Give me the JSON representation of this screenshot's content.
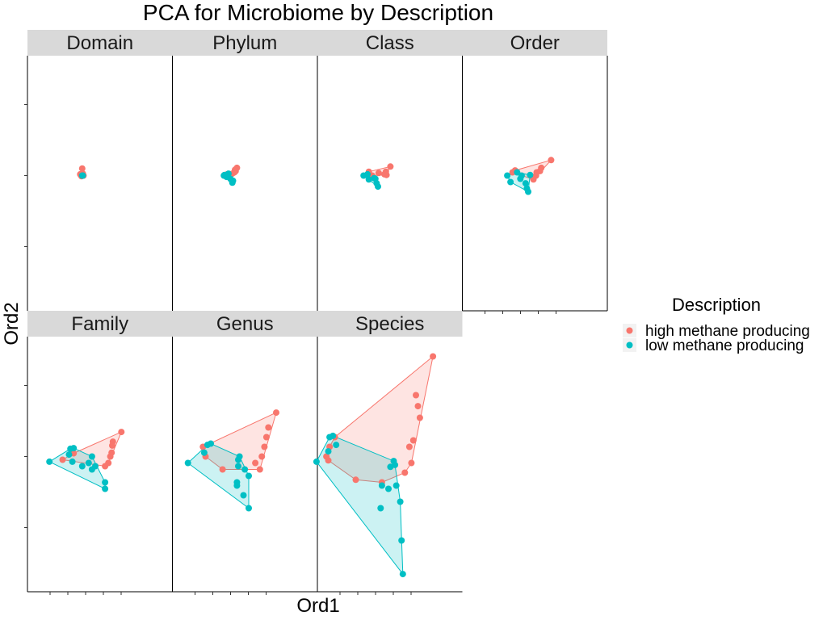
{
  "chart_data": {
    "type": "scatter",
    "title": "PCA for Microbiome by Description",
    "xlabel": "Ord1",
    "ylabel": "Ord2",
    "xlim": [
      -1,
      1
    ],
    "ylim": [
      -1,
      1
    ],
    "grid": false,
    "hulls": true,
    "legend_position": "right",
    "legend": {
      "title": "Description",
      "entries": [
        {
          "name": "high methane producing",
          "color": "#F8766D"
        },
        {
          "name": "low methane producing",
          "color": "#00BFC4"
        }
      ]
    },
    "facets": [
      {
        "label": "Domain",
        "series": [
          {
            "name": "high methane producing",
            "color": "#F8766D",
            "points": [
              [
                -0.08,
                0.02
              ],
              [
                -0.05,
                0.11
              ],
              [
                -0.03,
                0.0
              ],
              [
                -0.06,
                -0.01
              ],
              [
                -0.04,
                0.03
              ]
            ]
          },
          {
            "name": "low methane producing",
            "color": "#00BFC4",
            "points": [
              [
                -0.05,
                0.0
              ],
              [
                -0.04,
                0.0
              ]
            ]
          }
        ]
      },
      {
        "label": "Phylum",
        "series": [
          {
            "name": "high methane producing",
            "color": "#F8766D",
            "points": [
              [
                0.1,
                0.12
              ],
              [
                0.08,
                0.07
              ],
              [
                0.06,
                0.05
              ],
              [
                0.03,
                0.03
              ],
              [
                -0.05,
                0.02
              ],
              [
                0.07,
                0.09
              ],
              [
                -0.02,
                0.01
              ]
            ]
          },
          {
            "name": "low methane producing",
            "color": "#00BFC4",
            "points": [
              [
                -0.1,
                0.0
              ],
              [
                0.03,
                -0.11
              ],
              [
                0.04,
                -0.08
              ],
              [
                -0.03,
                0.03
              ],
              [
                -0.06,
                -0.02
              ],
              [
                0.0,
                -0.05
              ],
              [
                -0.09,
                0.01
              ]
            ]
          }
        ]
      },
      {
        "label": "Class",
        "series": [
          {
            "name": "high methane producing",
            "color": "#F8766D",
            "points": [
              [
                0.23,
                0.14
              ],
              [
                0.16,
                0.06
              ],
              [
                0.17,
                0.01
              ],
              [
                0.05,
                0.04
              ],
              [
                -0.1,
                0.06
              ],
              [
                0.14,
                0.02
              ],
              [
                -0.05,
                0.0
              ]
            ]
          },
          {
            "name": "low methane producing",
            "color": "#00BFC4",
            "points": [
              [
                -0.18,
                0.0
              ],
              [
                0.02,
                -0.12
              ],
              [
                0.04,
                -0.17
              ],
              [
                -0.1,
                -0.06
              ],
              [
                0.0,
                -0.05
              ],
              [
                -0.12,
                0.02
              ],
              [
                -0.02,
                -0.04
              ]
            ]
          }
        ]
      },
      {
        "label": "Order",
        "series": [
          {
            "name": "high methane producing",
            "color": "#F8766D",
            "points": [
              [
                0.47,
                0.24
              ],
              [
                0.32,
                0.12
              ],
              [
                0.3,
                0.07
              ],
              [
                0.24,
                0.0
              ],
              [
                -0.08,
                0.08
              ],
              [
                -0.12,
                0.05
              ],
              [
                0.25,
                0.05
              ],
              [
                0.2,
                -0.06
              ]
            ]
          },
          {
            "name": "low methane producing",
            "color": "#00BFC4",
            "points": [
              [
                -0.2,
                0.0
              ],
              [
                0.12,
                -0.25
              ],
              [
                0.1,
                -0.2
              ],
              [
                -0.15,
                -0.1
              ],
              [
                0.0,
                -0.05
              ],
              [
                0.02,
                0.0
              ],
              [
                -0.05,
                0.05
              ],
              [
                0.15,
                0.01
              ],
              [
                0.08,
                -0.12
              ]
            ]
          }
        ]
      },
      {
        "label": "Family",
        "series": [
          {
            "name": "high methane producing",
            "color": "#F8766D",
            "points": [
              [
                0.55,
                0.38
              ],
              [
                0.42,
                0.23
              ],
              [
                0.41,
                0.17
              ],
              [
                0.4,
                0.06
              ],
              [
                0.38,
                0.0
              ],
              [
                -0.18,
                0.05
              ],
              [
                -0.35,
                -0.05
              ],
              [
                0.3,
                -0.15
              ],
              [
                0.35,
                -0.1
              ]
            ]
          },
          {
            "name": "low methane producing",
            "color": "#00BFC4",
            "points": [
              [
                -0.55,
                -0.08
              ],
              [
                -0.18,
                0.13
              ],
              [
                -0.23,
                0.12
              ],
              [
                -0.25,
                0.03
              ],
              [
                0.3,
                -0.4
              ],
              [
                0.3,
                -0.5
              ],
              [
                -0.05,
                -0.15
              ],
              [
                0.1,
                -0.2
              ],
              [
                0.1,
                0.0
              ],
              [
                0.05,
                -0.1
              ],
              [
                0.15,
                -0.15
              ],
              [
                -0.2,
                -0.08
              ]
            ]
          }
        ]
      },
      {
        "label": "Genus",
        "series": [
          {
            "name": "high methane producing",
            "color": "#F8766D",
            "points": [
              [
                0.7,
                0.68
              ],
              [
                0.58,
                0.45
              ],
              [
                0.55,
                0.3
              ],
              [
                0.52,
                0.15
              ],
              [
                0.48,
                0.0
              ],
              [
                0.38,
                -0.1
              ],
              [
                -0.12,
                -0.2
              ],
              [
                -0.38,
                0.0
              ],
              [
                -0.42,
                0.15
              ],
              [
                0.45,
                -0.2
              ]
            ]
          },
          {
            "name": "low methane producing",
            "color": "#00BFC4",
            "points": [
              [
                -0.65,
                -0.1
              ],
              [
                -0.3,
                0.2
              ],
              [
                -0.35,
                0.18
              ],
              [
                -0.4,
                0.06
              ],
              [
                0.28,
                -0.3
              ],
              [
                0.1,
                -0.4
              ],
              [
                0.1,
                -0.45
              ],
              [
                0.2,
                -0.6
              ],
              [
                0.28,
                -0.8
              ],
              [
                0.14,
                0.0
              ],
              [
                0.12,
                -0.05
              ],
              [
                0.12,
                -0.15
              ],
              [
                0.22,
                -0.2
              ]
            ]
          }
        ]
      },
      {
        "label": "Species",
        "series": [
          {
            "name": "high methane producing",
            "color": "#F8766D",
            "points": [
              [
                0.88,
                1.55
              ],
              [
                0.62,
                0.95
              ],
              [
                0.65,
                0.78
              ],
              [
                0.68,
                0.6
              ],
              [
                0.58,
                0.25
              ],
              [
                0.52,
                0.15
              ],
              [
                0.55,
                -0.1
              ],
              [
                0.45,
                -0.25
              ],
              [
                -0.3,
                -0.36
              ],
              [
                -0.72,
                -0.06
              ],
              [
                -0.75,
                0.0
              ],
              [
                -0.62,
                0.3
              ],
              [
                -0.7,
                0.15
              ],
              [
                0.1,
                -0.4
              ]
            ]
          },
          {
            "name": "low methane producing",
            "color": "#00BFC4",
            "points": [
              [
                -0.9,
                -0.08
              ],
              [
                -0.65,
                0.32
              ],
              [
                -0.7,
                0.3
              ],
              [
                -0.6,
                0.18
              ],
              [
                -0.72,
                0.08
              ],
              [
                0.38,
                -0.7
              ],
              [
                0.08,
                -0.8
              ],
              [
                0.1,
                -0.45
              ],
              [
                0.2,
                -0.5
              ],
              [
                0.28,
                -0.07
              ],
              [
                0.3,
                -0.13
              ],
              [
                0.23,
                -0.16
              ],
              [
                0.32,
                -0.45
              ],
              [
                0.4,
                -1.3
              ],
              [
                0.42,
                -1.82
              ]
            ]
          }
        ]
      }
    ]
  }
}
